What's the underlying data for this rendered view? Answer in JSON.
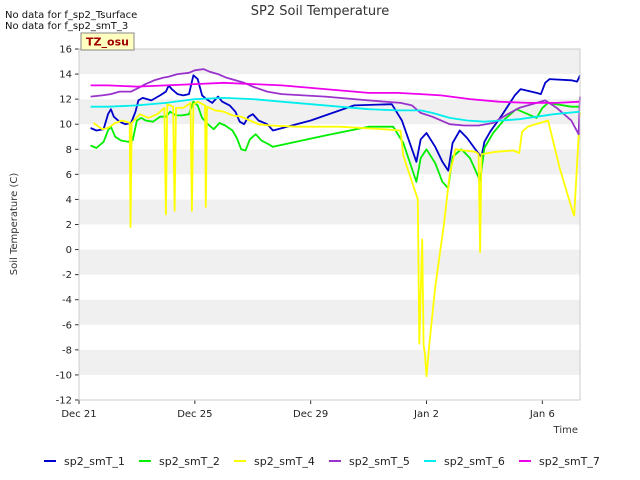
{
  "notes": [
    "No data for f_sp2_Tsurface",
    "No data for f_sp2_smT_3"
  ],
  "badge": "TZ_osu",
  "chart_data": {
    "type": "line",
    "title": "SP2 Soil Temperature",
    "xlabel": "Time",
    "ylabel": "Soil Temperature (C)",
    "ylim": [
      -12,
      16
    ],
    "xlim": [
      0,
      17.3
    ],
    "y_ticks": [
      -12,
      -10,
      -8,
      -6,
      -4,
      -2,
      0,
      2,
      4,
      6,
      8,
      10,
      12,
      14,
      16
    ],
    "x_ticks": [
      {
        "x": 0,
        "label": "Dec 21"
      },
      {
        "x": 4,
        "label": "Dec 25"
      },
      {
        "x": 8,
        "label": "Dec 29"
      },
      {
        "x": 12,
        "label": "Jan 2"
      },
      {
        "x": 16,
        "label": "Jan 6"
      }
    ],
    "x_unit": "days since Dec 21",
    "grid": true,
    "legend_position": "bottom",
    "series": [
      {
        "name": "sp2_smT_1",
        "color": "#0000cc",
        "points": [
          [
            0.4,
            9.7
          ],
          [
            0.6,
            9.5
          ],
          [
            0.85,
            9.6
          ],
          [
            1.0,
            10.8
          ],
          [
            1.1,
            11.2
          ],
          [
            1.2,
            10.6
          ],
          [
            1.4,
            10.2
          ],
          [
            1.6,
            10.0
          ],
          [
            1.8,
            10.1
          ],
          [
            1.95,
            11.0
          ],
          [
            2.05,
            11.9
          ],
          [
            2.2,
            12.1
          ],
          [
            2.5,
            11.9
          ],
          [
            2.8,
            12.3
          ],
          [
            3.0,
            12.6
          ],
          [
            3.1,
            13.1
          ],
          [
            3.2,
            12.8
          ],
          [
            3.4,
            12.4
          ],
          [
            3.6,
            12.3
          ],
          [
            3.8,
            12.4
          ],
          [
            3.95,
            13.9
          ],
          [
            4.1,
            13.6
          ],
          [
            4.25,
            12.3
          ],
          [
            4.4,
            12.0
          ],
          [
            4.6,
            11.7
          ],
          [
            4.8,
            12.2
          ],
          [
            4.95,
            11.8
          ],
          [
            5.2,
            11.5
          ],
          [
            5.4,
            11.0
          ],
          [
            5.55,
            10.2
          ],
          [
            5.7,
            10.0
          ],
          [
            5.85,
            10.6
          ],
          [
            6.0,
            10.8
          ],
          [
            6.2,
            10.3
          ],
          [
            6.5,
            10.0
          ],
          [
            6.7,
            9.5
          ],
          [
            8.0,
            10.3
          ],
          [
            9.5,
            11.5
          ],
          [
            10.8,
            11.6
          ],
          [
            11.15,
            10.3
          ],
          [
            11.65,
            7.0
          ],
          [
            11.8,
            8.8
          ],
          [
            12.0,
            9.3
          ],
          [
            12.3,
            8.2
          ],
          [
            12.55,
            7.0
          ],
          [
            12.75,
            6.3
          ],
          [
            12.9,
            8.5
          ],
          [
            13.15,
            9.5
          ],
          [
            13.4,
            8.9
          ],
          [
            13.75,
            7.8
          ],
          [
            13.9,
            7.4
          ],
          [
            14.0,
            8.6
          ],
          [
            14.2,
            9.4
          ],
          [
            14.6,
            10.7
          ],
          [
            15.05,
            12.3
          ],
          [
            15.25,
            12.8
          ],
          [
            15.8,
            12.5
          ],
          [
            15.95,
            12.4
          ],
          [
            16.1,
            13.3
          ],
          [
            16.25,
            13.6
          ],
          [
            17.0,
            13.5
          ],
          [
            17.2,
            13.4
          ],
          [
            17.3,
            13.9
          ]
        ]
      },
      {
        "name": "sp2_smT_2",
        "color": "#00ee00",
        "points": [
          [
            0.4,
            8.3
          ],
          [
            0.6,
            8.1
          ],
          [
            0.85,
            8.6
          ],
          [
            1.0,
            9.5
          ],
          [
            1.1,
            9.8
          ],
          [
            1.25,
            9.0
          ],
          [
            1.45,
            8.7
          ],
          [
            1.7,
            8.6
          ],
          [
            1.85,
            8.7
          ],
          [
            2.0,
            10.3
          ],
          [
            2.15,
            10.5
          ],
          [
            2.3,
            10.3
          ],
          [
            2.55,
            10.2
          ],
          [
            2.8,
            10.6
          ],
          [
            3.0,
            10.6
          ],
          [
            3.15,
            11.0
          ],
          [
            3.35,
            10.7
          ],
          [
            3.55,
            10.7
          ],
          [
            3.8,
            10.8
          ],
          [
            3.95,
            11.8
          ],
          [
            4.1,
            11.5
          ],
          [
            4.25,
            10.5
          ],
          [
            4.45,
            10.0
          ],
          [
            4.65,
            9.6
          ],
          [
            4.85,
            10.1
          ],
          [
            5.05,
            9.9
          ],
          [
            5.3,
            9.5
          ],
          [
            5.45,
            8.9
          ],
          [
            5.6,
            8.0
          ],
          [
            5.75,
            7.9
          ],
          [
            5.9,
            8.8
          ],
          [
            6.1,
            9.2
          ],
          [
            6.3,
            8.7
          ],
          [
            6.55,
            8.4
          ],
          [
            6.7,
            8.2
          ],
          [
            8.5,
            9.1
          ],
          [
            10.0,
            9.8
          ],
          [
            10.85,
            9.8
          ],
          [
            11.2,
            8.5
          ],
          [
            11.65,
            5.4
          ],
          [
            11.8,
            7.3
          ],
          [
            12.0,
            8.0
          ],
          [
            12.3,
            6.9
          ],
          [
            12.55,
            5.4
          ],
          [
            12.75,
            4.9
          ],
          [
            12.9,
            7.4
          ],
          [
            13.2,
            8.0
          ],
          [
            13.5,
            7.3
          ],
          [
            13.85,
            5.5
          ],
          [
            14.0,
            8.1
          ],
          [
            14.3,
            9.3
          ],
          [
            14.7,
            10.4
          ],
          [
            15.1,
            11.2
          ],
          [
            15.8,
            10.5
          ],
          [
            16.0,
            11.3
          ],
          [
            16.2,
            11.7
          ],
          [
            17.0,
            11.4
          ],
          [
            17.3,
            11.4
          ]
        ]
      },
      {
        "name": "sp2_smT_4",
        "color": "#ffff00",
        "points": [
          [
            0.5,
            10.1
          ],
          [
            0.8,
            9.6
          ],
          [
            1.0,
            9.7
          ],
          [
            1.25,
            10.1
          ],
          [
            1.5,
            10.3
          ],
          [
            1.75,
            10.1
          ],
          [
            1.78,
            1.8
          ],
          [
            1.82,
            10.1
          ],
          [
            2.1,
            10.8
          ],
          [
            2.4,
            10.5
          ],
          [
            2.7,
            10.8
          ],
          [
            2.95,
            11.3
          ],
          [
            3.0,
            2.8
          ],
          [
            3.05,
            11.6
          ],
          [
            3.25,
            11.4
          ],
          [
            3.3,
            3.1
          ],
          [
            3.35,
            11.3
          ],
          [
            3.6,
            11.3
          ],
          [
            3.85,
            11.7
          ],
          [
            3.9,
            3.1
          ],
          [
            3.95,
            11.6
          ],
          [
            4.1,
            11.8
          ],
          [
            4.35,
            11.5
          ],
          [
            4.38,
            3.4
          ],
          [
            4.42,
            11.4
          ],
          [
            4.7,
            11.1
          ],
          [
            5.0,
            11.0
          ],
          [
            5.3,
            10.7
          ],
          [
            5.6,
            10.6
          ],
          [
            5.9,
            10.3
          ],
          [
            6.2,
            10.0
          ],
          [
            6.6,
            9.9
          ],
          [
            7.5,
            9.8
          ],
          [
            9.0,
            9.8
          ],
          [
            10.5,
            9.6
          ],
          [
            11.1,
            9.5
          ],
          [
            11.2,
            7.5
          ],
          [
            11.7,
            4.0
          ],
          [
            11.75,
            -7.5
          ],
          [
            11.85,
            0.8
          ],
          [
            11.9,
            -7.6
          ],
          [
            11.95,
            -8.5
          ],
          [
            12.0,
            -10.1
          ],
          [
            12.1,
            -7.5
          ],
          [
            12.3,
            -3.0
          ],
          [
            12.6,
            2.0
          ],
          [
            12.8,
            6.0
          ],
          [
            13.0,
            8.0
          ],
          [
            13.3,
            7.9
          ],
          [
            13.7,
            7.8
          ],
          [
            13.8,
            7.6
          ],
          [
            13.85,
            -0.2
          ],
          [
            13.9,
            7.6
          ],
          [
            14.4,
            7.8
          ],
          [
            15.0,
            7.9
          ],
          [
            15.2,
            7.7
          ],
          [
            15.3,
            9.4
          ],
          [
            15.5,
            9.8
          ],
          [
            15.9,
            10.1
          ],
          [
            16.2,
            10.3
          ],
          [
            16.6,
            6.5
          ],
          [
            17.05,
            3.0
          ],
          [
            17.1,
            2.7
          ],
          [
            17.3,
            11.0
          ]
        ]
      },
      {
        "name": "sp2_smT_5",
        "color": "#9933cc",
        "points": [
          [
            0.4,
            12.2
          ],
          [
            0.8,
            12.3
          ],
          [
            1.1,
            12.4
          ],
          [
            1.4,
            12.6
          ],
          [
            1.8,
            12.6
          ],
          [
            2.05,
            12.9
          ],
          [
            2.3,
            13.2
          ],
          [
            2.6,
            13.5
          ],
          [
            2.9,
            13.7
          ],
          [
            3.1,
            13.8
          ],
          [
            3.4,
            14.0
          ],
          [
            3.8,
            14.1
          ],
          [
            4.0,
            14.3
          ],
          [
            4.3,
            14.4
          ],
          [
            4.5,
            14.2
          ],
          [
            4.8,
            14.0
          ],
          [
            5.1,
            13.7
          ],
          [
            5.4,
            13.5
          ],
          [
            5.7,
            13.3
          ],
          [
            6.0,
            13.0
          ],
          [
            6.5,
            12.6
          ],
          [
            7.0,
            12.4
          ],
          [
            8.5,
            12.2
          ],
          [
            10.0,
            11.9
          ],
          [
            11.1,
            11.7
          ],
          [
            11.5,
            11.5
          ],
          [
            11.8,
            10.9
          ],
          [
            12.2,
            10.6
          ],
          [
            12.8,
            10.0
          ],
          [
            13.3,
            9.9
          ],
          [
            13.8,
            9.9
          ],
          [
            14.3,
            10.1
          ],
          [
            14.8,
            10.8
          ],
          [
            15.2,
            11.3
          ],
          [
            15.8,
            11.7
          ],
          [
            16.1,
            11.9
          ],
          [
            16.5,
            11.3
          ],
          [
            17.0,
            10.3
          ],
          [
            17.25,
            9.2
          ],
          [
            17.3,
            12.2
          ]
        ]
      },
      {
        "name": "sp2_smT_6",
        "color": "#00eeee",
        "points": [
          [
            0.4,
            11.4
          ],
          [
            1.0,
            11.4
          ],
          [
            2.0,
            11.5
          ],
          [
            3.0,
            11.7
          ],
          [
            4.0,
            12.0
          ],
          [
            5.0,
            12.1
          ],
          [
            6.0,
            12.0
          ],
          [
            7.0,
            11.8
          ],
          [
            8.0,
            11.6
          ],
          [
            9.0,
            11.4
          ],
          [
            10.0,
            11.2
          ],
          [
            11.0,
            11.1
          ],
          [
            11.8,
            11.1
          ],
          [
            12.2,
            10.9
          ],
          [
            12.8,
            10.5
          ],
          [
            13.4,
            10.3
          ],
          [
            14.0,
            10.2
          ],
          [
            14.6,
            10.3
          ],
          [
            15.2,
            10.4
          ],
          [
            15.8,
            10.6
          ],
          [
            16.4,
            10.8
          ],
          [
            17.3,
            11.0
          ]
        ]
      },
      {
        "name": "sp2_smT_7",
        "color": "#ee00ee",
        "points": [
          [
            0.4,
            13.1
          ],
          [
            1.0,
            13.1
          ],
          [
            2.0,
            13.0
          ],
          [
            3.0,
            13.1
          ],
          [
            4.0,
            13.2
          ],
          [
            5.0,
            13.3
          ],
          [
            6.0,
            13.2
          ],
          [
            7.0,
            13.1
          ],
          [
            8.0,
            12.9
          ],
          [
            9.0,
            12.7
          ],
          [
            10.0,
            12.5
          ],
          [
            11.0,
            12.5
          ],
          [
            11.8,
            12.4
          ],
          [
            12.5,
            12.3
          ],
          [
            13.5,
            12.0
          ],
          [
            14.5,
            11.8
          ],
          [
            15.5,
            11.7
          ],
          [
            16.5,
            11.7
          ],
          [
            17.3,
            11.8
          ]
        ]
      }
    ]
  }
}
